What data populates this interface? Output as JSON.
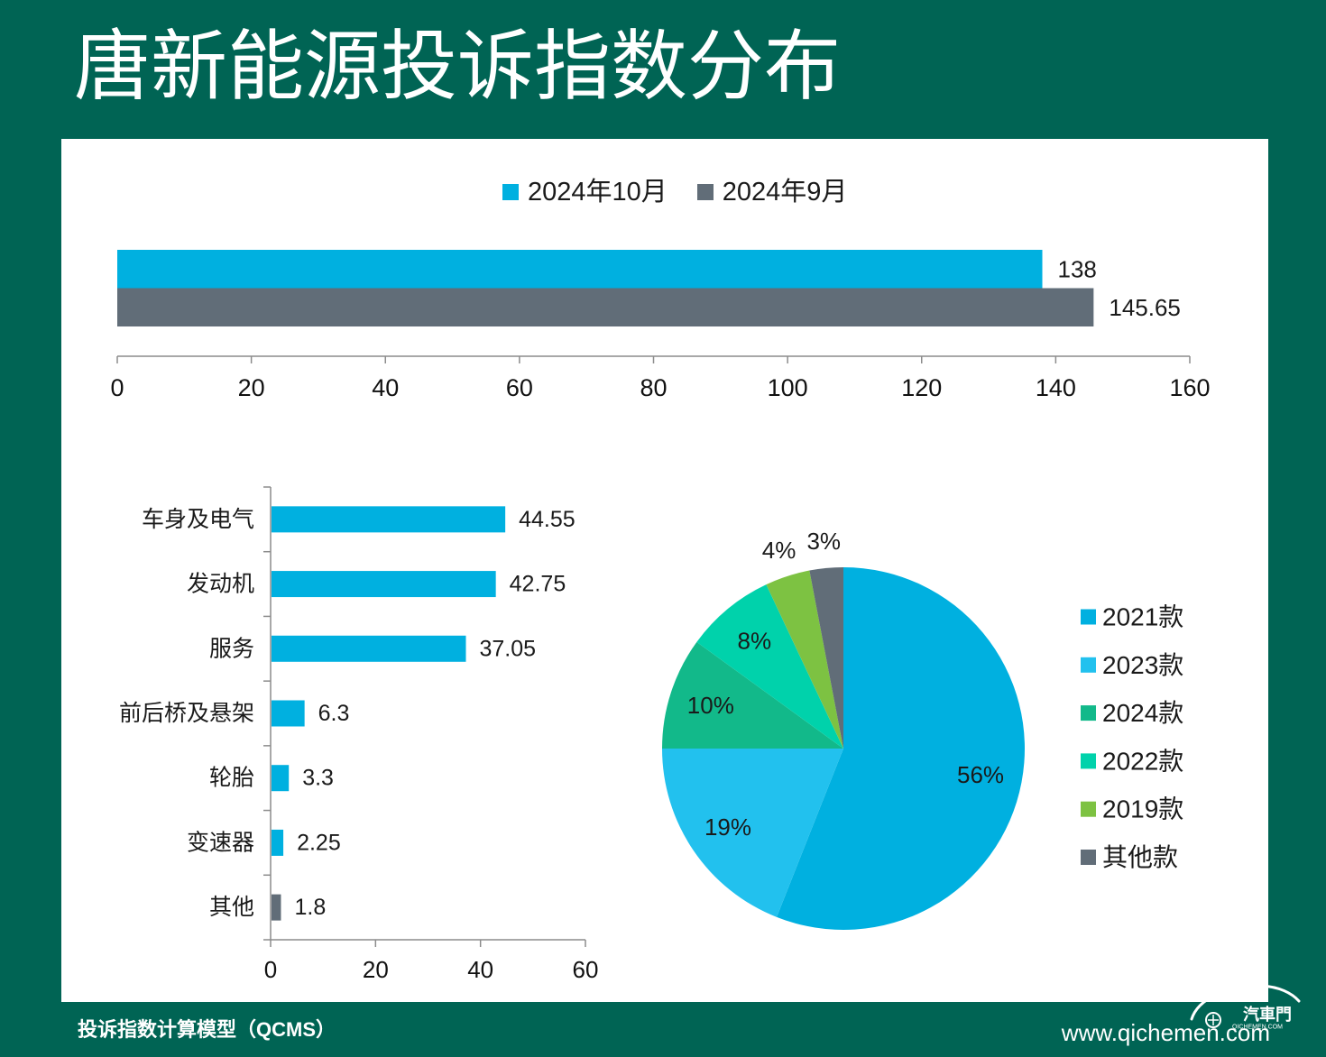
{
  "theme": {
    "background": "#006454",
    "panel": "#ffffff",
    "title_color": "#ffffff",
    "text_dark": "#1a1a1a",
    "axis_color": "#8c8c8c"
  },
  "title": "唐新能源投诉指数分布",
  "chart_data": [
    {
      "type": "bar",
      "orientation": "horizontal",
      "legend": "top",
      "series": [
        {
          "name": "2024年10月",
          "values": [
            138
          ],
          "color": "#00b0e0"
        },
        {
          "name": "2024年9月",
          "values": [
            145.65
          ],
          "color": "#616d78"
        }
      ],
      "xlim": [
        0,
        160
      ],
      "xticks": [
        0,
        20,
        40,
        60,
        80,
        100,
        120,
        140,
        160
      ],
      "grid": false
    },
    {
      "type": "bar",
      "orientation": "horizontal",
      "categories": [
        "车身及电气",
        "发动机",
        "服务",
        "前后桥及悬架",
        "轮胎",
        "变速器",
        "其他"
      ],
      "values": [
        44.55,
        42.75,
        37.05,
        6.3,
        3.3,
        2.25,
        1.8
      ],
      "colors": [
        "#00b0e0",
        "#00b0e0",
        "#00b0e0",
        "#00b0e0",
        "#00b0e0",
        "#00b0e0",
        "#616d78"
      ],
      "xlim": [
        0,
        60
      ],
      "xticks": [
        0,
        20,
        40,
        60
      ],
      "grid": false
    },
    {
      "type": "pie",
      "legend": "right",
      "labels": [
        "2021款",
        "2023款",
        "2024款",
        "2022款",
        "2019款",
        "其他款"
      ],
      "values": [
        56,
        19,
        10,
        8,
        4,
        3
      ],
      "unit": "%",
      "colors": [
        "#00b0e0",
        "#22c1ee",
        "#12b98a",
        "#00d2ab",
        "#7dc242",
        "#616d78"
      ]
    }
  ],
  "footer": {
    "model": "投诉指数计算模型（QCMS）",
    "url": "www.qichemen.com"
  },
  "logo": {
    "name": "汽車門",
    "sub": "QICHEMEN.COM"
  }
}
